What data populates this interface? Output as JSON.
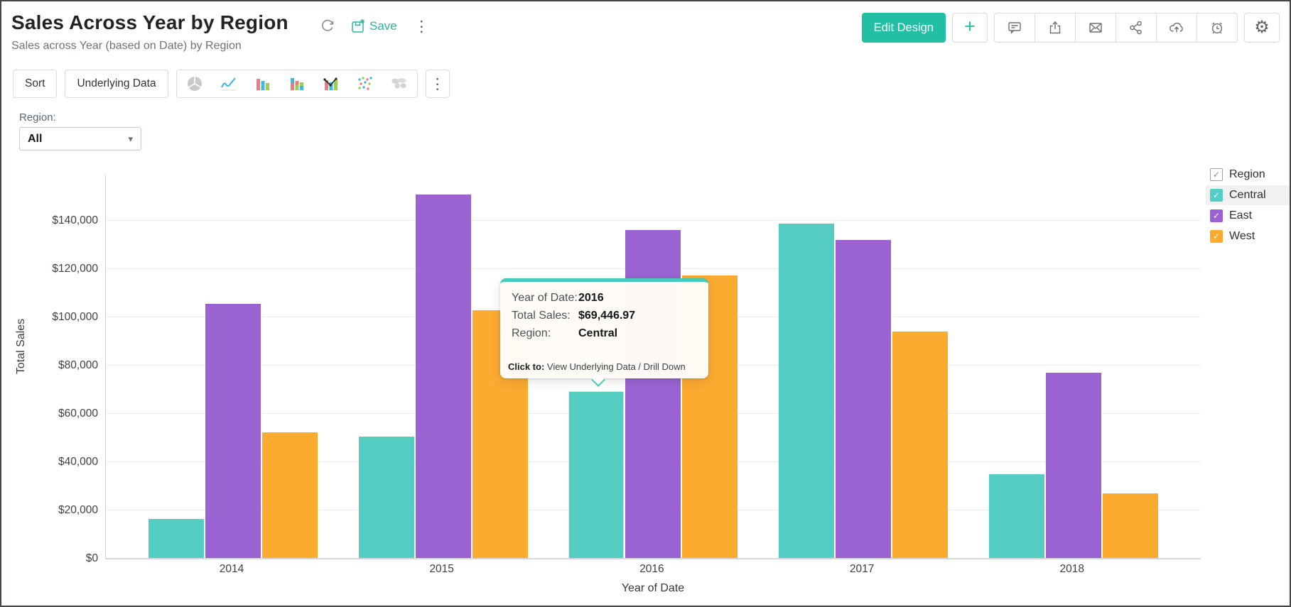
{
  "header": {
    "title": "Sales Across Year by Region",
    "subtitle": "Sales across Year (based on Date) by Region",
    "save_label": "Save",
    "edit_design_label": "Edit Design",
    "action_icon_names": [
      "refresh-icon",
      "save-icon",
      "kebab-menu-icon",
      "plus-icon",
      "comment-icon",
      "export-icon",
      "email-icon",
      "share-icon",
      "cloud-upload-icon",
      "alarm-icon",
      "settings-gear-icon"
    ]
  },
  "toolbar": {
    "sort_label": "Sort",
    "underlying_data_label": "Underlying Data",
    "chart_type_icon_names": [
      "pie-chart-icon",
      "line-chart-icon",
      "bar-chart-icon",
      "stacked-bar-chart-icon",
      "combo-chart-icon",
      "scatter-plot-icon",
      "map-chart-icon",
      "more-chart-types-icon"
    ]
  },
  "filter": {
    "label": "Region:",
    "value": "All"
  },
  "glyphs": {
    "kebab": "⋮",
    "plus": "+",
    "gear": "⚙",
    "caret": "▾",
    "check": "✓"
  },
  "tooltip": {
    "rows": [
      {
        "label": "Year of Date:",
        "value": "2016"
      },
      {
        "label": "Total Sales:",
        "value": "$69,446.97"
      },
      {
        "label": "Region:",
        "value": "Central"
      }
    ],
    "footer_label": "Click to:",
    "footer_text": "View Underlying Data / Drill Down"
  },
  "legend": {
    "title": "Region",
    "items": [
      {
        "label": "Central",
        "color": "#54CEC2",
        "highlighted": true,
        "checked": true
      },
      {
        "label": "East",
        "color": "#9B63D2",
        "highlighted": false,
        "checked": true
      },
      {
        "label": "West",
        "color": "#FBAB30",
        "highlighted": false,
        "checked": true
      }
    ]
  },
  "chart_data": {
    "type": "bar",
    "title": "Sales Across Year by Region",
    "categories": [
      "2014",
      "2015",
      "2016",
      "2017",
      "2018"
    ],
    "series": [
      {
        "name": "Central",
        "color": "#54CEC2",
        "values": [
          16500,
          50500,
          69446.97,
          138700,
          35000
        ]
      },
      {
        "name": "East",
        "color": "#9B63D2",
        "values": [
          105500,
          151000,
          136200,
          132000,
          77000
        ]
      },
      {
        "name": "West",
        "color": "#FBAB30",
        "values": [
          52400,
          102900,
          117400,
          94100,
          27100
        ]
      }
    ],
    "xlabel": "Year of Date",
    "ylabel": "Total Sales",
    "ylim": [
      0,
      158800
    ],
    "ytick_step": 20000,
    "ytick_labels": [
      "$0",
      "$20,000",
      "$40,000",
      "$60,000",
      "$80,000",
      "$100,000",
      "$120,000",
      "$140,000"
    ],
    "grid": true,
    "legend_position": "right",
    "highlighted_bar": {
      "series": "Central",
      "category": "2016"
    }
  },
  "colors": {
    "accent": "#22BFA5",
    "central": "#54CEC2",
    "east": "#9B63D2",
    "west": "#FBAB30",
    "tooltip_border": "#43CBBB"
  }
}
